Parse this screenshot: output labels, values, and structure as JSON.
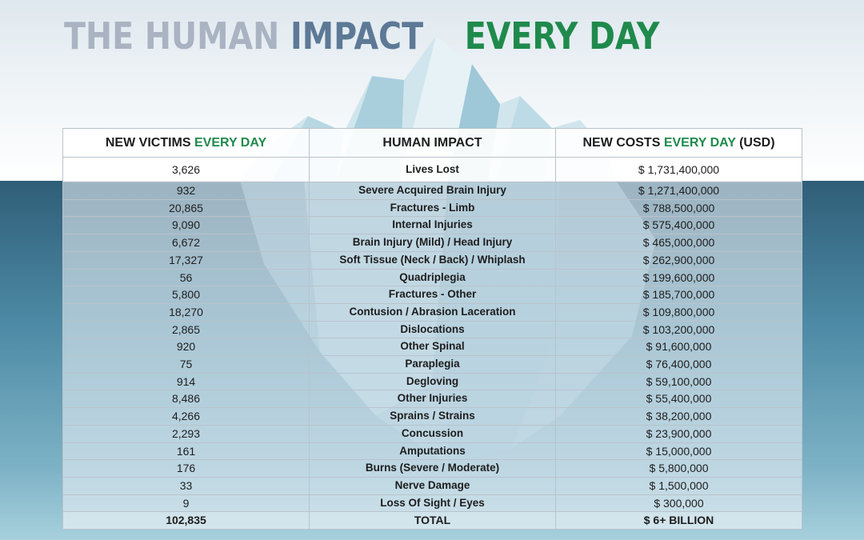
{
  "title": {
    "part1": "THE HUMAN",
    "part2": "IMPACT",
    "part3": "EVERY DAY"
  },
  "table": {
    "headers": {
      "victims_prefix": "NEW VICTIMS",
      "victims_green": "EVERY DAY",
      "impact": "HUMAN IMPACT",
      "costs_prefix": "NEW COSTS",
      "costs_green": "EVERY DAY",
      "costs_suffix": "(USD)"
    },
    "rows": [
      {
        "victims": "3,626",
        "impact": "Lives Lost",
        "cost": "$ 1,731,400,000"
      },
      {
        "victims": "932",
        "impact": "Severe Acquired Brain Injury",
        "cost": "$ 1,271,400,000"
      },
      {
        "victims": "20,865",
        "impact": "Fractures - Limb",
        "cost": "$ 788,500,000"
      },
      {
        "victims": "9,090",
        "impact": "Internal Injuries",
        "cost": "$ 575,400,000"
      },
      {
        "victims": "6,672",
        "impact": "Brain Injury (Mild) / Head Injury",
        "cost": "$ 465,000,000"
      },
      {
        "victims": "17,327",
        "impact": "Soft Tissue (Neck / Back) / Whiplash",
        "cost": "$ 262,900,000"
      },
      {
        "victims": "56",
        "impact": "Quadriplegia",
        "cost": "$ 199,600,000"
      },
      {
        "victims": "5,800",
        "impact": "Fractures - Other",
        "cost": "$ 185,700,000"
      },
      {
        "victims": "18,270",
        "impact": "Contusion / Abrasion Laceration",
        "cost": "$ 109,800,000"
      },
      {
        "victims": "2,865",
        "impact": "Dislocations",
        "cost": "$ 103,200,000"
      },
      {
        "victims": "920",
        "impact": "Other Spinal",
        "cost": "$ 91,600,000"
      },
      {
        "victims": "75",
        "impact": "Paraplegia",
        "cost": "$ 76,400,000"
      },
      {
        "victims": "914",
        "impact": "Degloving",
        "cost": "$ 59,100,000"
      },
      {
        "victims": "8,486",
        "impact": "Other Injuries",
        "cost": "$ 55,400,000"
      },
      {
        "victims": "4,266",
        "impact": "Sprains / Strains",
        "cost": "$ 38,200,000"
      },
      {
        "victims": "2,293",
        "impact": "Concussion",
        "cost": "$ 23,900,000"
      },
      {
        "victims": "161",
        "impact": "Amputations",
        "cost": "$ 15,000,000"
      },
      {
        "victims": "176",
        "impact": "Burns (Severe / Moderate)",
        "cost": "$ 5,800,000"
      },
      {
        "victims": "33",
        "impact": "Nerve Damage",
        "cost": "$ 1,500,000"
      },
      {
        "victims": "9",
        "impact": "Loss Of Sight / Eyes",
        "cost": "$ 300,000"
      }
    ],
    "total": {
      "victims": "102,835",
      "impact": "TOTAL",
      "cost": "$ 6+ BILLION"
    }
  },
  "colors": {
    "title_gray": "#a9b3c2",
    "title_blue": "#5d7996",
    "accent_green": "#1f8a4c"
  }
}
